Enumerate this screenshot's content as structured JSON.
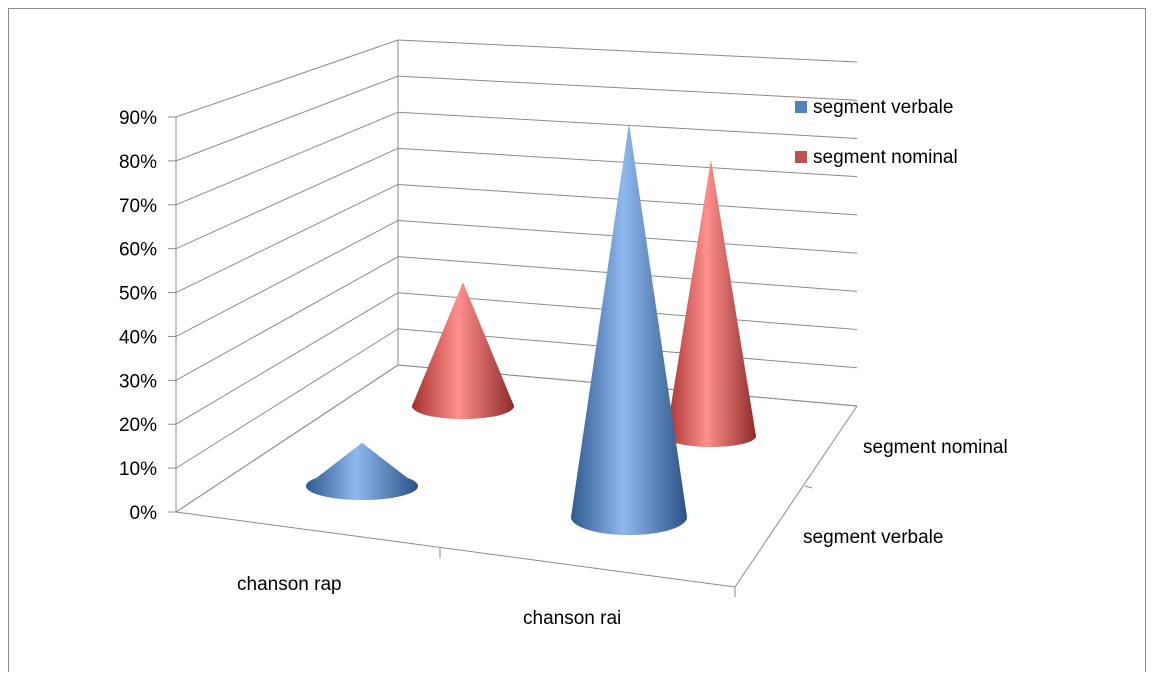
{
  "chart_data": {
    "type": "bar",
    "style": "3d-cone",
    "categories": [
      "chanson rap",
      "chanson rai"
    ],
    "series": [
      {
        "name": "segment verbale",
        "color": "#4f81bd",
        "values": [
          0.1,
          0.86
        ]
      },
      {
        "name": "segment nominal",
        "color": "#c0504d",
        "values": [
          0.34,
          0.72
        ]
      }
    ],
    "depth_labels": [
      "segment verbale",
      "segment nominal"
    ],
    "ylim": [
      0,
      0.9
    ],
    "y_ticks": [
      "0%",
      "10%",
      "20%",
      "30%",
      "40%",
      "50%",
      "60%",
      "70%",
      "80%",
      "90%"
    ],
    "xlabel": "",
    "ylabel": "",
    "title": "",
    "grid": true,
    "legend_position": "right"
  },
  "legend": {
    "items": [
      {
        "label": "segment verbale",
        "color": "#4f81bd"
      },
      {
        "label": "segment nominal",
        "color": "#c0504d"
      }
    ]
  }
}
